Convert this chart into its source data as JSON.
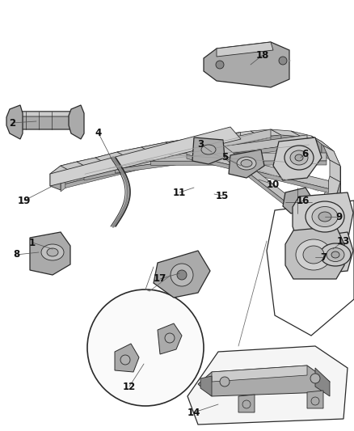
{
  "bg_color": "#ffffff",
  "line_color": "#2a2a2a",
  "label_color": "#111111",
  "label_fontsize": 8.5,
  "lw_frame": 1.1,
  "lw_part": 0.9,
  "lw_thin": 0.6,
  "lw_leader": 0.55,
  "grey_dark": "#888888",
  "grey_mid": "#aaaaaa",
  "grey_light": "#cccccc",
  "grey_fill": "#d8d8d8",
  "white_fill": "#f8f8f8",
  "labels": [
    [
      "1",
      40,
      300
    ],
    [
      "2",
      15,
      152
    ],
    [
      "3",
      248,
      178
    ],
    [
      "4",
      122,
      165
    ],
    [
      "5",
      278,
      195
    ],
    [
      "6",
      377,
      190
    ],
    [
      "7",
      400,
      318
    ],
    [
      "8",
      20,
      315
    ],
    [
      "9",
      420,
      268
    ],
    [
      "10",
      338,
      228
    ],
    [
      "11",
      222,
      238
    ],
    [
      "12",
      160,
      478
    ],
    [
      "13",
      425,
      298
    ],
    [
      "14",
      240,
      510
    ],
    [
      "15",
      275,
      242
    ],
    [
      "16",
      375,
      248
    ],
    [
      "17",
      198,
      345
    ],
    [
      "18",
      325,
      68
    ],
    [
      "19",
      30,
      248
    ]
  ]
}
